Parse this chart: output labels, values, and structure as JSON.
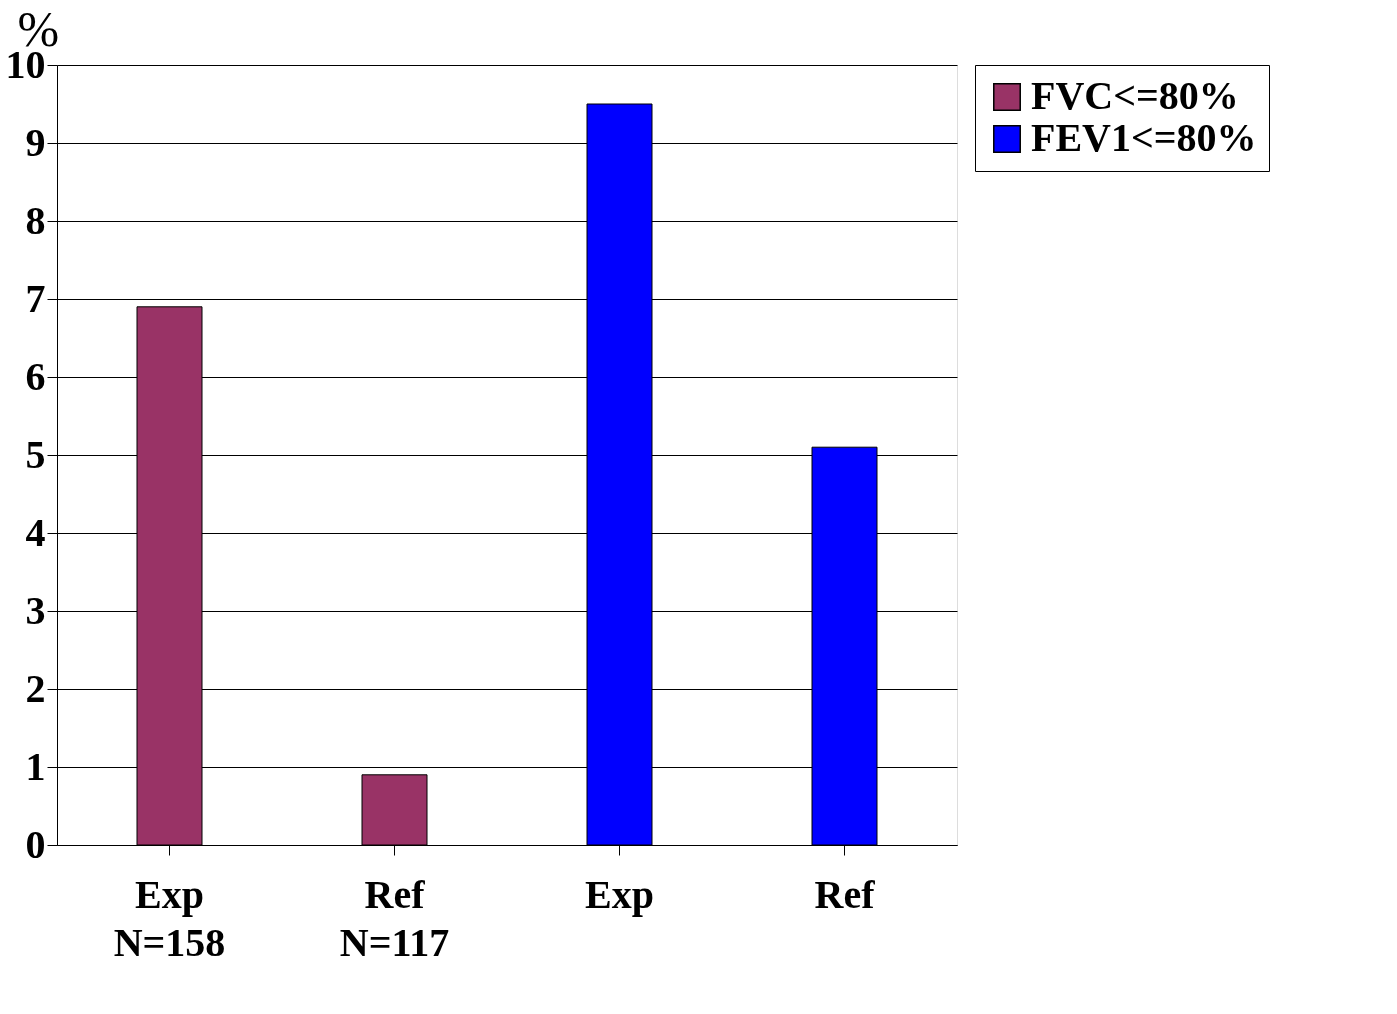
{
  "chart_data": {
    "type": "bar",
    "categories": [
      "Exp\nN=158",
      "Ref\nN=117",
      "Exp",
      "Ref"
    ],
    "ylabel": "%",
    "series": [
      {
        "name": "FVC<=80%",
        "color": "#993366",
        "values": [
          6.9,
          0.9,
          null,
          null
        ]
      },
      {
        "name": "FEV1<=80%",
        "color": "#0000ff",
        "values": [
          null,
          null,
          9.5,
          5.1
        ]
      }
    ],
    "ylim": [
      0,
      10
    ],
    "yticks": [
      0,
      1,
      2,
      3,
      4,
      5,
      6,
      7,
      8,
      9,
      10
    ],
    "grid": "y",
    "legend": "right"
  }
}
